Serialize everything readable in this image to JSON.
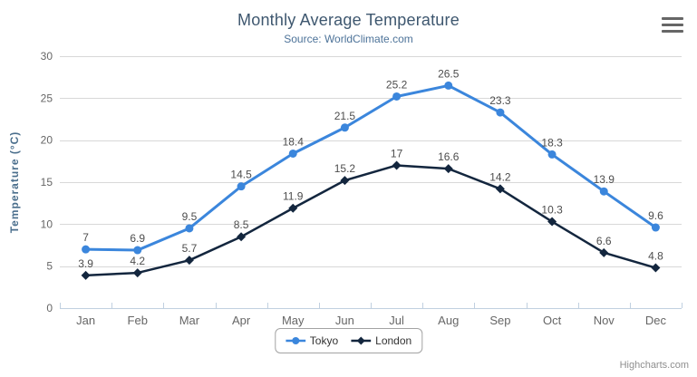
{
  "chart_data": {
    "type": "line",
    "title": "Monthly Average Temperature",
    "subtitle": "Source: WorldClimate.com",
    "categories": [
      "Jan",
      "Feb",
      "Mar",
      "Apr",
      "May",
      "Jun",
      "Jul",
      "Aug",
      "Sep",
      "Oct",
      "Nov",
      "Dec"
    ],
    "series": [
      {
        "name": "Tokyo",
        "color": "#3b86dc",
        "marker": "circle",
        "values": [
          7,
          6.9,
          9.5,
          14.5,
          18.4,
          21.5,
          25.2,
          26.5,
          23.3,
          18.3,
          13.9,
          9.6
        ]
      },
      {
        "name": "London",
        "color": "#13263e",
        "marker": "diamond",
        "values": [
          3.9,
          4.2,
          5.7,
          8.5,
          11.9,
          15.2,
          17,
          16.6,
          14.2,
          10.3,
          6.6,
          4.8
        ]
      }
    ],
    "xlabel": "",
    "ylabel": "Temperature (°C)",
    "ylim": [
      0,
      30
    ],
    "yticks": [
      0,
      5,
      10,
      15,
      20,
      25,
      30
    ],
    "grid": true,
    "data_labels": true,
    "legend_position": "bottom"
  },
  "credits": {
    "label": "Highcharts.com"
  },
  "context_menu": {
    "icon": "hamburger-menu"
  },
  "colors": {
    "title": "#3e576f",
    "subtitle": "#4d7399",
    "axis_title": "#4a6e8c",
    "axis_labels": "#666666",
    "data_labels": "#4d4d4d",
    "gridline": "#d8d8d8",
    "axis_line": "#c0d0e0",
    "legend_border": "#a3a3a3",
    "legend_text": "#333333",
    "credits": "#8f8f8f",
    "menu_icon": "#666666"
  }
}
